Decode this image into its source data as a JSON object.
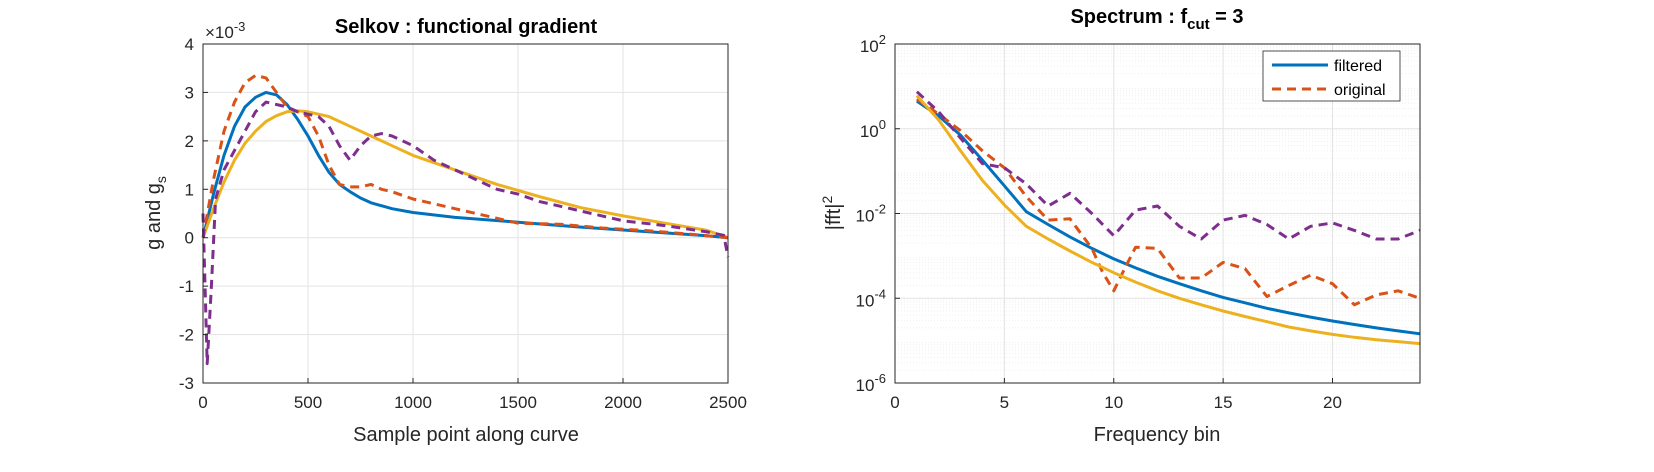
{
  "chart_data": [
    {
      "type": "line",
      "title": "Selkov : functional gradient",
      "xlabel": "Sample point along curve",
      "ylabel": "g and g",
      "ylabel_sub": "s",
      "exponent_label": "×10",
      "exponent_power": "-3",
      "xlim": [
        0,
        2500
      ],
      "ylim": [
        -3,
        4
      ],
      "xticks": [
        "0",
        "500",
        "1000",
        "1500",
        "2000",
        "2500"
      ],
      "yticks": [
        "-3",
        "-2",
        "-1",
        "0",
        "1",
        "2",
        "3",
        "4"
      ],
      "grid": true,
      "series": [
        {
          "color": "#0072BD",
          "style": "solid",
          "x": [
            0,
            50,
            100,
            150,
            200,
            250,
            300,
            350,
            400,
            450,
            500,
            550,
            600,
            650,
            700,
            750,
            800,
            900,
            1000,
            1200,
            1500,
            1800,
            2000,
            2200,
            2400,
            2500
          ],
          "y": [
            0.0,
            0.9,
            1.7,
            2.3,
            2.7,
            2.9,
            3.0,
            2.95,
            2.75,
            2.45,
            2.1,
            1.7,
            1.35,
            1.1,
            0.95,
            0.82,
            0.72,
            0.6,
            0.52,
            0.42,
            0.32,
            0.22,
            0.16,
            0.1,
            0.04,
            0.0
          ]
        },
        {
          "color": "#EDB120",
          "style": "solid",
          "x": [
            0,
            50,
            100,
            150,
            200,
            250,
            300,
            350,
            400,
            450,
            500,
            600,
            700,
            800,
            900,
            1000,
            1200,
            1400,
            1600,
            1800,
            2000,
            2200,
            2400,
            2500
          ],
          "y": [
            0.0,
            0.6,
            1.15,
            1.6,
            1.95,
            2.2,
            2.4,
            2.52,
            2.6,
            2.62,
            2.6,
            2.5,
            2.3,
            2.1,
            1.9,
            1.7,
            1.4,
            1.1,
            0.85,
            0.62,
            0.45,
            0.3,
            0.15,
            0.0
          ]
        },
        {
          "color": "#D95319",
          "style": "dashed",
          "x": [
            0,
            50,
            100,
            150,
            200,
            250,
            300,
            350,
            400,
            450,
            500,
            550,
            600,
            650,
            700,
            750,
            800,
            850,
            900,
            1000,
            1100,
            1200,
            1300,
            1400,
            1500,
            1700,
            1900,
            2100,
            2300,
            2500
          ],
          "y": [
            0.0,
            1.2,
            2.2,
            2.8,
            3.2,
            3.35,
            3.3,
            3.0,
            2.7,
            2.6,
            2.5,
            2.1,
            1.5,
            1.1,
            1.05,
            1.05,
            1.1,
            1.0,
            0.95,
            0.8,
            0.7,
            0.6,
            0.5,
            0.4,
            0.3,
            0.28,
            0.2,
            0.15,
            0.08,
            0.0
          ]
        },
        {
          "color": "#7E2F8E",
          "style": "dashed",
          "x": [
            0,
            20,
            40,
            60,
            100,
            150,
            200,
            250,
            300,
            350,
            400,
            450,
            500,
            550,
            600,
            650,
            700,
            750,
            800,
            850,
            900,
            1000,
            1100,
            1200,
            1300,
            1400,
            1500,
            1600,
            1700,
            1800,
            1900,
            2000,
            2200,
            2400,
            2480,
            2500
          ],
          "y": [
            0.5,
            -2.6,
            -1.0,
            0.8,
            1.4,
            1.8,
            2.2,
            2.6,
            2.8,
            2.75,
            2.7,
            2.6,
            2.55,
            2.5,
            2.3,
            1.9,
            1.6,
            1.9,
            2.1,
            2.15,
            2.1,
            1.9,
            1.6,
            1.4,
            1.2,
            1.0,
            0.9,
            0.75,
            0.65,
            0.55,
            0.45,
            0.35,
            0.25,
            0.12,
            0.05,
            -0.4
          ]
        }
      ]
    },
    {
      "type": "line",
      "title_prefix": "Spectrum : f",
      "title_sub": "cut",
      "title_suffix": " = 3",
      "xlabel": "Frequency bin",
      "ylabel": "|fft|",
      "ylabel_sup": "2",
      "yscale": "log",
      "xlim": [
        0,
        24
      ],
      "ylim": [
        1e-06,
        100
      ],
      "xticks": [
        "0",
        "5",
        "10",
        "15",
        "20"
      ],
      "yticks_base": "10",
      "yticks_exp": [
        "-6",
        "-4",
        "-2",
        "0",
        "2"
      ],
      "grid": true,
      "legend_position": "top-right",
      "legend": [
        "filtered",
        "original"
      ],
      "series": [
        {
          "name": "filtered",
          "color": "#0072BD",
          "style": "solid",
          "x": [
            1,
            2,
            3,
            4,
            5,
            6,
            7,
            8,
            9,
            10,
            11,
            12,
            13,
            14,
            15,
            16,
            17,
            18,
            19,
            20,
            21,
            22,
            23,
            24
          ],
          "y": [
            4.5,
            2.0,
            0.7,
            0.18,
            0.045,
            0.011,
            0.0055,
            0.0028,
            0.0015,
            0.00085,
            0.00052,
            0.00033,
            0.00022,
            0.00015,
            0.000105,
            7.8e-05,
            5.8e-05,
            4.5e-05,
            3.6e-05,
            2.9e-05,
            2.4e-05,
            2e-05,
            1.7e-05,
            1.45e-05
          ]
        },
        {
          "name": "original",
          "color": "#D95319",
          "style": "dashed",
          "x": [
            1,
            2,
            3,
            4,
            5,
            6,
            7,
            8,
            9,
            9.5,
            10,
            10.5,
            11,
            12,
            13,
            14,
            15,
            16,
            17,
            18,
            19,
            20,
            21,
            22,
            23,
            24
          ],
          "y": [
            5.0,
            2.2,
            0.9,
            0.3,
            0.12,
            0.025,
            0.007,
            0.0075,
            0.0015,
            0.0004,
            0.00015,
            0.0005,
            0.0016,
            0.0015,
            0.0003,
            0.0003,
            0.0007,
            0.0005,
            0.00011,
            0.0002,
            0.00035,
            0.00022,
            7e-05,
            0.00012,
            0.00015,
            0.0001
          ]
        },
        {
          "color": "#EDB120",
          "style": "solid",
          "x": [
            1,
            2,
            3,
            4,
            5,
            6,
            7,
            8,
            9,
            10,
            11,
            12,
            13,
            14,
            15,
            16,
            17,
            18,
            19,
            20,
            21,
            22,
            23,
            24
          ],
          "y": [
            6.0,
            1.6,
            0.3,
            0.06,
            0.016,
            0.005,
            0.0025,
            0.0013,
            0.0007,
            0.0004,
            0.00024,
            0.00015,
            0.0001,
            7e-05,
            5e-05,
            3.7e-05,
            2.8e-05,
            2.1e-05,
            1.7e-05,
            1.4e-05,
            1.2e-05,
            1.05e-05,
            9.5e-06,
            8.5e-06
          ]
        },
        {
          "color": "#7E2F8E",
          "style": "dashed",
          "x": [
            1,
            2,
            3,
            4,
            5,
            6,
            7,
            8,
            9,
            10,
            11,
            12,
            13,
            14,
            15,
            16,
            17,
            18,
            19,
            20,
            21,
            22,
            23,
            24
          ],
          "y": [
            7.5,
            2.5,
            0.6,
            0.15,
            0.12,
            0.05,
            0.015,
            0.03,
            0.01,
            0.003,
            0.012,
            0.015,
            0.005,
            0.0025,
            0.007,
            0.009,
            0.0055,
            0.0025,
            0.005,
            0.006,
            0.004,
            0.0025,
            0.0025,
            0.004
          ]
        }
      ]
    }
  ]
}
